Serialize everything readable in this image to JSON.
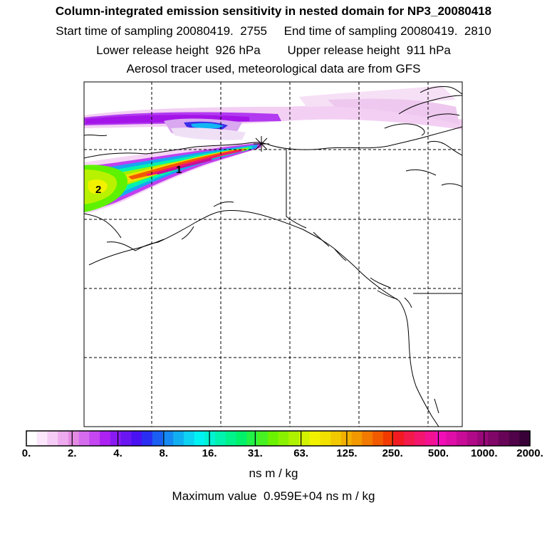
{
  "header": {
    "title": "Column-integrated emission sensitivity in nested domain for NP3_20080418",
    "line2": "Start time of sampling 20080419.  2755     End time of sampling 20080419.  2810",
    "line3": "Lower release height  926 hPa        Upper release height  911 hPa",
    "line4": "Aerosol tracer used, meteorological data are from GFS"
  },
  "map": {
    "labels": {
      "one": "1",
      "two": "2"
    },
    "release_marker_icon": "asterisk-icon"
  },
  "colorbar": {
    "ticks": [
      "0.",
      "2.",
      "4.",
      "8.",
      "16.",
      "31.",
      "63.",
      "125.",
      "250.",
      "500.",
      "1000.",
      "2000."
    ],
    "colors": [
      "#ffffff",
      "#fbe6fb",
      "#f5ccf5",
      "#eeaaee",
      "#e38ae3",
      "#d56cee",
      "#c447f2",
      "#ad22f2",
      "#8a1af2",
      "#6a16f2",
      "#4a12f2",
      "#2a2ef2",
      "#1a5ef2",
      "#168af2",
      "#12aef2",
      "#0ed2f2",
      "#00f2f2",
      "#00f2d2",
      "#00f2ae",
      "#00f28a",
      "#00f26a",
      "#22f246",
      "#46f222",
      "#6af200",
      "#8af200",
      "#aef200",
      "#d2f200",
      "#f2f200",
      "#f2e000",
      "#f2c800",
      "#f2b000",
      "#f29800",
      "#f27a00",
      "#f25a00",
      "#f23a00",
      "#f21a22",
      "#f21a4a",
      "#f2166e",
      "#f21292",
      "#f20eb6",
      "#e00ea8",
      "#c80c98",
      "#b00a88",
      "#980878",
      "#800668",
      "#680458",
      "#500348",
      "#380238"
    ],
    "units": "ns m / kg",
    "max_value": "Maximum value  0.959E+04 ns m / kg"
  }
}
